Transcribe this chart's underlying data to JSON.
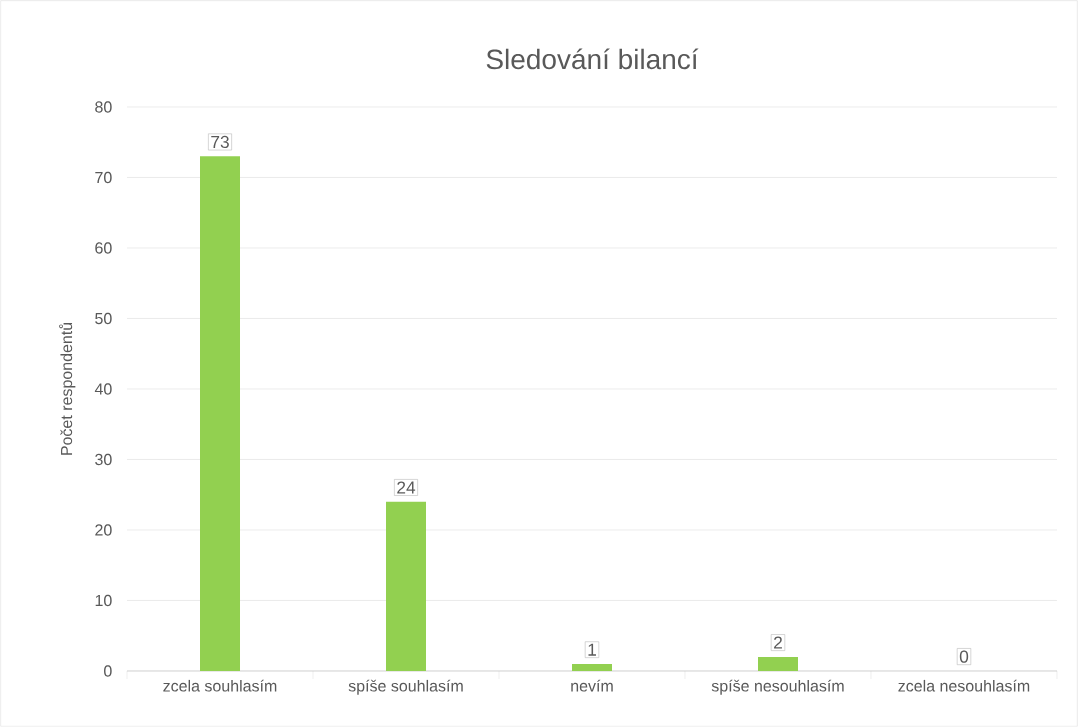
{
  "chart_data": {
    "type": "bar",
    "title": "Sledování bilancí",
    "ylabel": "Počet respondentů",
    "categories": [
      "zcela souhlasím",
      "spíše souhlasím",
      "nevím",
      "spíše nesouhlasím",
      "zcela nesouhlasím"
    ],
    "values": [
      73,
      24,
      1,
      2,
      0
    ],
    "color": "#92d050",
    "ylim": [
      0,
      80
    ],
    "yticks": [
      0,
      10,
      20,
      30,
      40,
      50,
      60,
      70,
      80
    ],
    "grid": "y",
    "data_labels": true
  }
}
